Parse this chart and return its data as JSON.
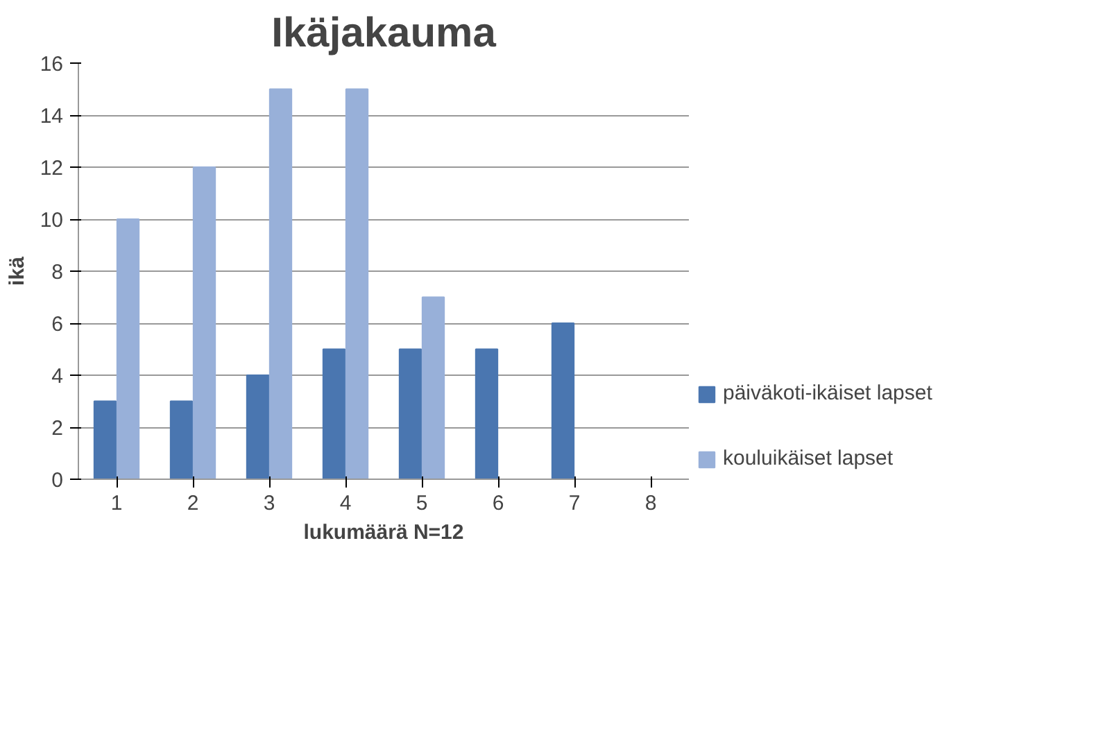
{
  "chart_data": {
    "type": "bar",
    "title": "Ikäjakauma",
    "xlabel": "lukumäärä N=12",
    "ylabel": "ikä",
    "categories": [
      "1",
      "2",
      "3",
      "4",
      "5",
      "6",
      "7",
      "8"
    ],
    "series": [
      {
        "name": "päiväkoti-ikäiset lapset",
        "color": "#4a76b0",
        "values": [
          3,
          3,
          4,
          5,
          5,
          5,
          6,
          null
        ]
      },
      {
        "name": "kouluikäiset lapset",
        "color": "#98b0d9",
        "values": [
          10,
          12,
          15,
          15,
          7,
          null,
          null,
          null
        ]
      }
    ],
    "ylim": [
      0,
      16
    ],
    "yticks": [
      0,
      2,
      4,
      6,
      8,
      10,
      12,
      14,
      16
    ],
    "grid": "y",
    "legend": "right"
  }
}
